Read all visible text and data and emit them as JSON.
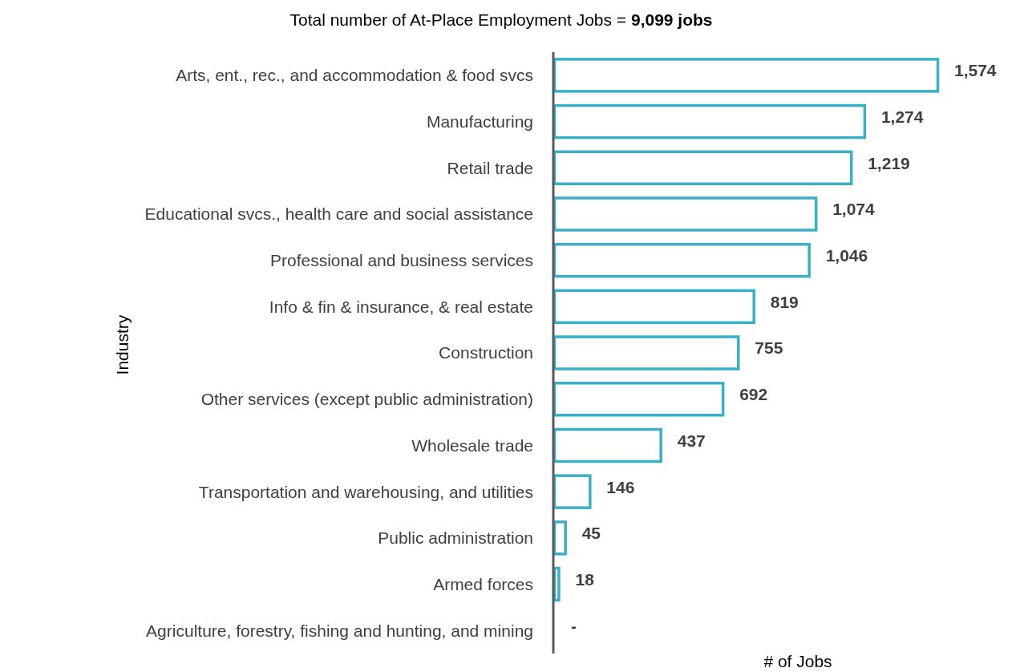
{
  "chart_data": {
    "type": "bar",
    "orientation": "horizontal",
    "title": "Total number of At-Place Employment Jobs = 9,099 jobs",
    "xlabel": "# of Jobs",
    "ylabel": "Industry",
    "categories": [
      "Arts, ent., rec., and accommodation & food svcs",
      "Manufacturing",
      "Retail trade",
      "Educational svcs., health care and social assistance",
      "Professional and business services",
      "Info & fin & insurance, & real estate",
      "Construction",
      "Other services (except public administration)",
      "Wholesale trade",
      "Transportation and warehousing, and utilities",
      "Public administration",
      "Armed forces",
      "Agriculture, forestry, fishing and hunting, and mining"
    ],
    "values": [
      1574,
      1274,
      1219,
      1074,
      1046,
      819,
      755,
      692,
      437,
      146,
      45,
      18,
      0
    ],
    "value_labels": [
      "1,574",
      "1,274",
      "1,219",
      "1,074",
      "1,046",
      "819",
      "755",
      "692",
      "437",
      "146",
      "45",
      "18",
      "-"
    ],
    "color": "#3ab0c8"
  }
}
